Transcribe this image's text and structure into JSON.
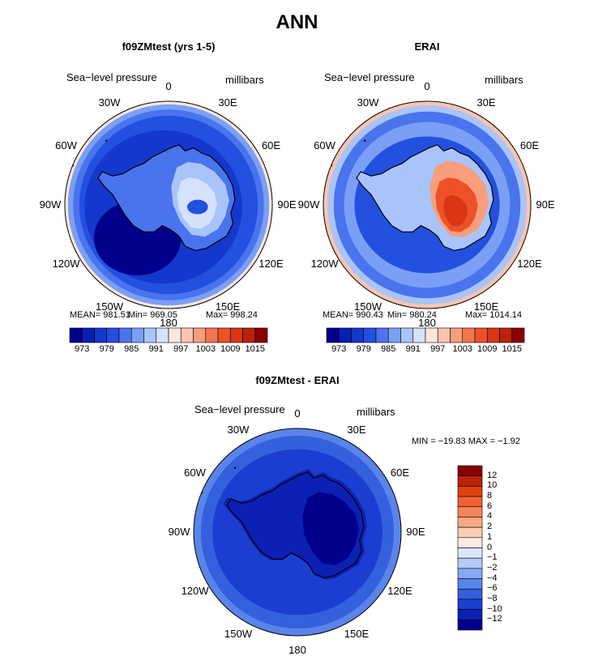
{
  "figure_title": "ANN",
  "panels": [
    {
      "id": "model",
      "title": "f09ZMtest (yrs 1-5)",
      "variable_label": "Sea−level pressure",
      "units_label": "millibars",
      "stats": {
        "mean_label": "MEAN= 981.51",
        "min_label": "Min= 969.05",
        "max_label": "Max= 998.24"
      },
      "field": "model"
    },
    {
      "id": "obs",
      "title": "ERAI",
      "variable_label": "Sea−level pressure",
      "units_label": "millibars",
      "stats": {
        "mean_label": "MEAN= 990.43",
        "min_label": "Min= 980.24",
        "max_label": "Max= 1014.14"
      },
      "field": "obs"
    },
    {
      "id": "diff",
      "title": "f09ZMtest - ERAI",
      "variable_label": "Sea−level pressure",
      "units_label": "millibars",
      "minmax_label": "MIN = −19.83 MAX = −1.92",
      "field": "diff"
    }
  ],
  "longitude_labels": [
    "0",
    "30E",
    "60E",
    "90E",
    "120E",
    "150E",
    "180",
    "150W",
    "120W",
    "90W",
    "60W",
    "30W"
  ],
  "abs_colorbar": {
    "tick_labels": [
      "973",
      "979",
      "985",
      "991",
      "997",
      "1003",
      "1009",
      "1015"
    ],
    "colors": [
      "#00008b",
      "#0a1fb0",
      "#1538cc",
      "#2450e0",
      "#4a73ee",
      "#7aa0f6",
      "#a8c4fa",
      "#d4e2fc",
      "#fbe6dc",
      "#fac4ae",
      "#f89e7c",
      "#f4764f",
      "#ee5128",
      "#d93616",
      "#b8230a",
      "#8b0000"
    ]
  },
  "diff_colorbar": {
    "tick_labels": [
      "12",
      "10",
      "8",
      "6",
      "4",
      "2",
      "1",
      "0",
      "−1",
      "−2",
      "−4",
      "−6",
      "−8",
      "−10",
      "−12"
    ],
    "colors": [
      "#8b0000",
      "#b8230a",
      "#e2400f",
      "#f26030",
      "#f5845a",
      "#f9a982",
      "#fbcdb4",
      "#fbebe2",
      "#dbe7fb",
      "#b3cbf7",
      "#86a9f2",
      "#5a84ea",
      "#3560dd",
      "#1c3ed0",
      "#0c20b3",
      "#00008b"
    ]
  }
}
